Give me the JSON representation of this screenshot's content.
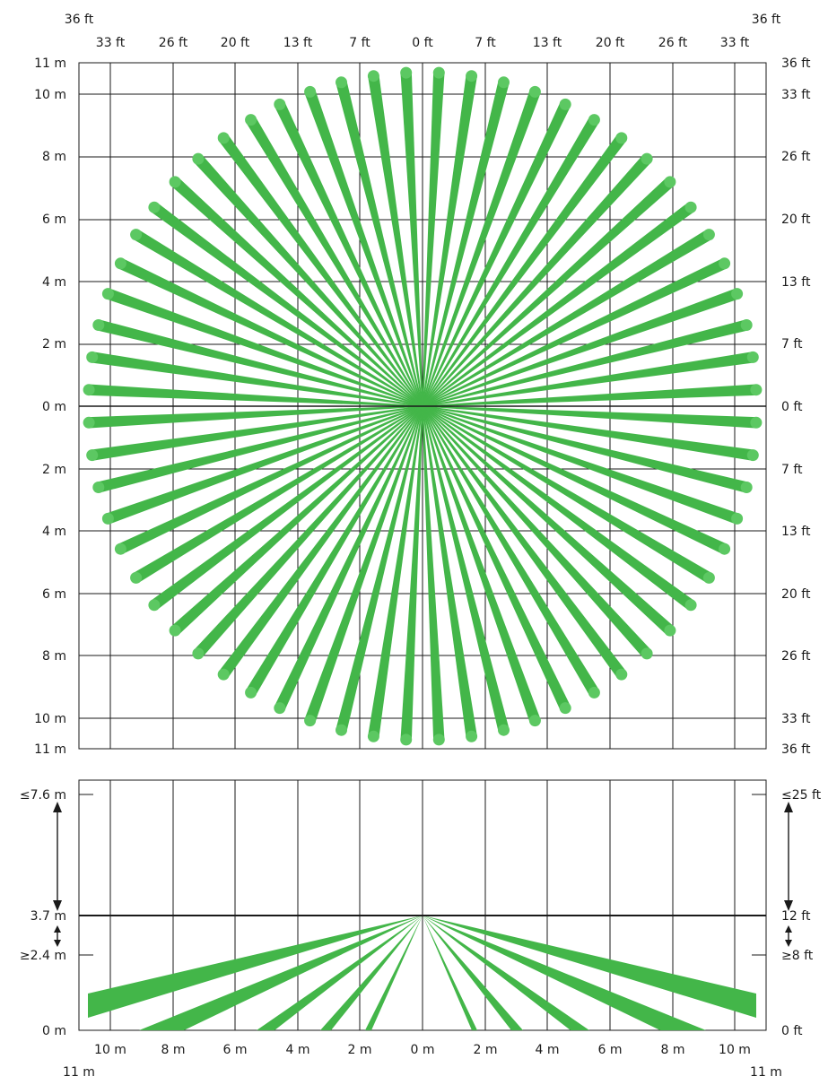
{
  "top_view": {
    "top_ft_corner_left": "36 ft",
    "top_ft_corner_right": "36 ft",
    "top_ft_labels": [
      "33 ft",
      "26 ft",
      "20 ft",
      "13 ft",
      "7 ft",
      "0 ft",
      "7 ft",
      "13 ft",
      "20 ft",
      "26 ft",
      "33 ft"
    ],
    "left_m_labels": [
      "11 m",
      "10 m",
      "8 m",
      "6 m",
      "4 m",
      "2 m",
      "0 m",
      "2 m",
      "4 m",
      "6 m",
      "8 m",
      "10 m",
      "11 m"
    ],
    "right_ft_labels": [
      "36 ft",
      "33 ft",
      "26 ft",
      "20 ft",
      "13 ft",
      "7 ft",
      "0 ft",
      "7 ft",
      "13 ft",
      "20 ft",
      "26 ft",
      "33 ft",
      "36 ft"
    ],
    "beam_count": 64,
    "beam_radius_m": 10.7,
    "beam_color": "#43b649"
  },
  "side_view": {
    "left_labels": {
      "max_height": "≤7.6 m",
      "mount_height": "3.7 m",
      "min_height": "≥2.4 m",
      "floor": "0 m"
    },
    "right_labels": {
      "max_height": "≤25 ft",
      "mount_height": "12 ft",
      "min_height": "≥8 ft",
      "floor": "0 ft"
    },
    "bottom_m_labels": [
      "10 m",
      "8 m",
      "6 m",
      "4 m",
      "2 m",
      "0 m",
      "2 m",
      "4 m",
      "6 m",
      "8 m",
      "10 m"
    ],
    "bottom_corner_left": "11 m",
    "bottom_corner_right": "11 m"
  }
}
